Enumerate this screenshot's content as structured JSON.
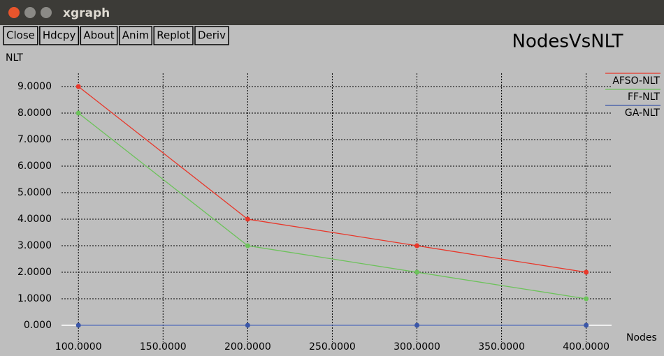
{
  "window": {
    "title": "xgraph",
    "buttons": [
      "Close",
      "Hdcpy",
      "About",
      "Anim",
      "Replot",
      "Deriv"
    ]
  },
  "chart_data": {
    "type": "line",
    "title": "NodesVsNLT",
    "y_label": "NLT",
    "x_label": "Nodes",
    "x": [
      100,
      200,
      300,
      400
    ],
    "series": [
      {
        "name": "AFSO-NLT",
        "color": "#e8372a",
        "values": [
          9,
          4,
          3,
          2
        ]
      },
      {
        "name": "FF-NLT",
        "color": "#6cc25a",
        "values": [
          8,
          3,
          2,
          1
        ]
      },
      {
        "name": "GA-NLT",
        "color": "#3a56a8",
        "values": [
          0,
          0,
          0,
          0
        ]
      }
    ],
    "xlim": [
      90,
      415
    ],
    "ylim": [
      0,
      9.5
    ],
    "xticks": [
      {
        "value": 100,
        "label": "100.0000"
      },
      {
        "value": 150,
        "label": "150.0000"
      },
      {
        "value": 200,
        "label": "200.0000"
      },
      {
        "value": 250,
        "label": "250.0000"
      },
      {
        "value": 300,
        "label": "300.0000"
      },
      {
        "value": 350,
        "label": "350.0000"
      },
      {
        "value": 400,
        "label": "400.0000"
      }
    ],
    "yticks": [
      {
        "value": 0,
        "label": "0.000"
      },
      {
        "value": 1,
        "label": "1.0000"
      },
      {
        "value": 2,
        "label": "2.0000"
      },
      {
        "value": 3,
        "label": "3.0000"
      },
      {
        "value": 4,
        "label": "4.0000"
      },
      {
        "value": 5,
        "label": "5.0000"
      },
      {
        "value": 6,
        "label": "6.0000"
      },
      {
        "value": 7,
        "label": "7.0000"
      },
      {
        "value": 8,
        "label": "8.0000"
      },
      {
        "value": 9,
        "label": "9.0000"
      }
    ],
    "grid": true
  }
}
